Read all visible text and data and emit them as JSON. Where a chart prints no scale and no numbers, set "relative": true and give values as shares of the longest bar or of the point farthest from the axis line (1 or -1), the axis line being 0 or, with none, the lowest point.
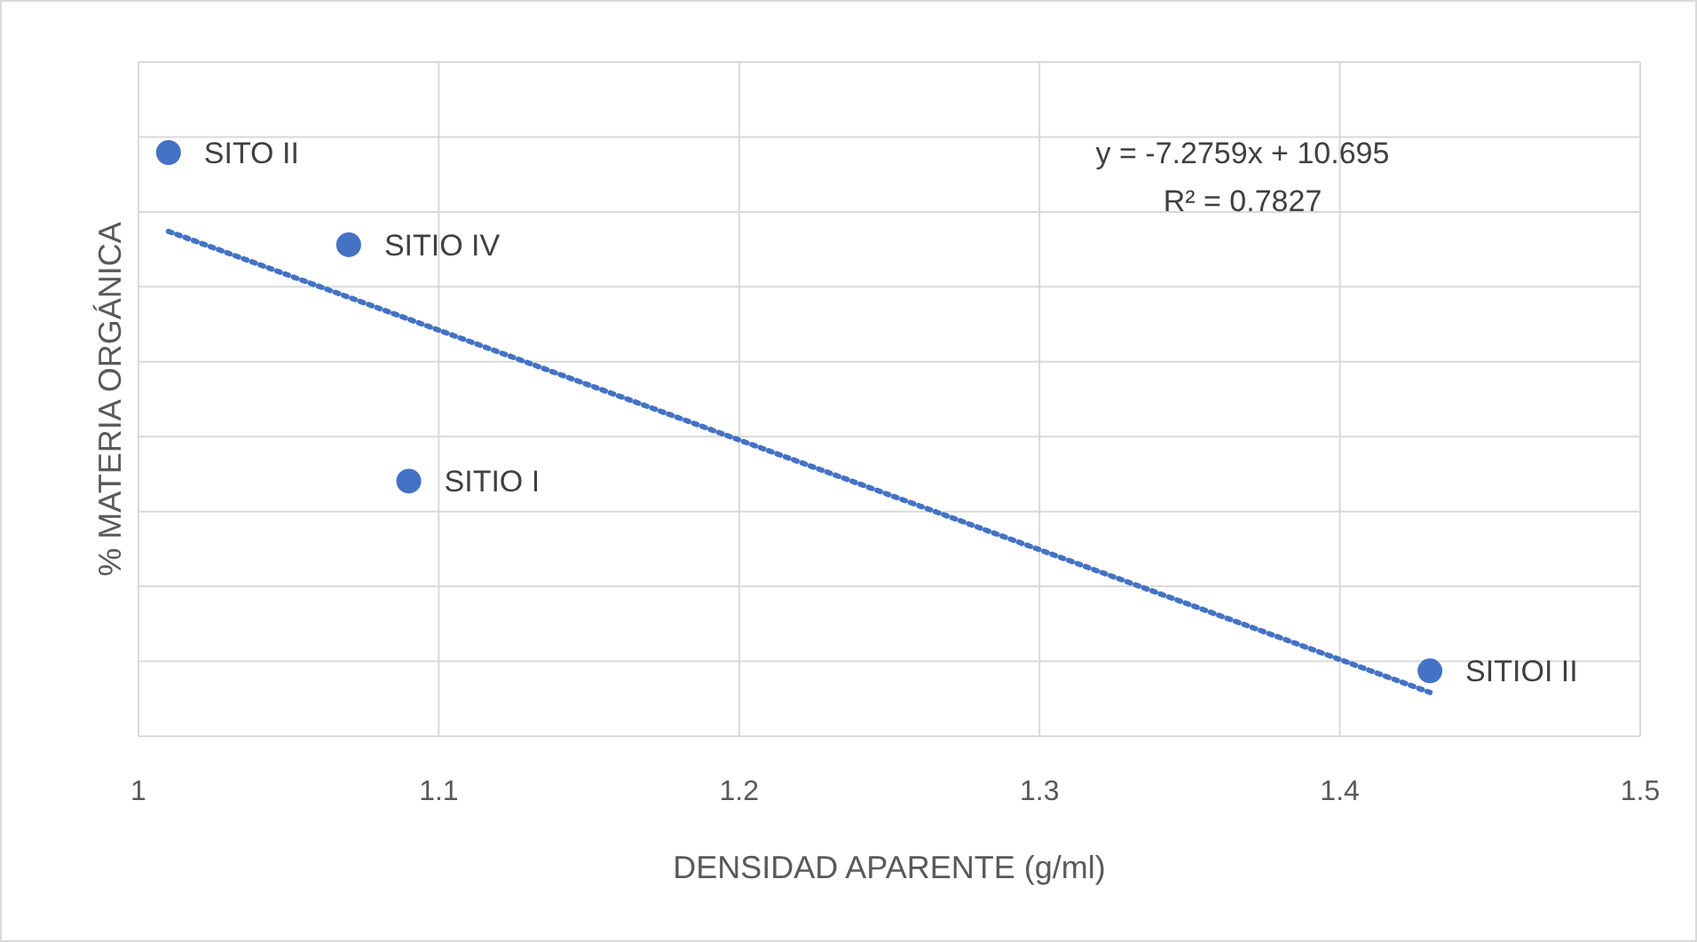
{
  "chart_data": {
    "type": "scatter",
    "xlabel": "DENSIDAD APARENTE (g/ml)",
    "ylabel": "% MATERIA ORGÁNICA",
    "relative": true,
    "xlim": [
      1,
      1.5
    ],
    "xticks": [
      1,
      1.1,
      1.2,
      1.3,
      1.4,
      1.5
    ],
    "grid": true,
    "series": [
      {
        "color": "#4472c4",
        "marker": "circle",
        "x": [
          1.01,
          1.07,
          1.09,
          1.43
        ],
        "values": [
          1,
          0.842,
          0.437,
          0.112
        ]
      },
      {
        "type": "line",
        "color": "#4472c4",
        "line_style": "dotted",
        "x": [
          1.01,
          1.43
        ],
        "values": [
          0.865,
          0.075
        ]
      }
    ],
    "annotations": [
      {
        "text": "SITO II",
        "x": 1.01,
        "y": 1
      },
      {
        "text": "SITIO IV",
        "x": 1.07,
        "y": 0.842
      },
      {
        "text": "SITIO I",
        "x": 1.09,
        "y": 0.437
      },
      {
        "text": "SITIOI II",
        "x": 1.43,
        "y": 0.112
      },
      "y = -7.2759x + 10.695",
      "R² = 0.7827"
    ]
  }
}
